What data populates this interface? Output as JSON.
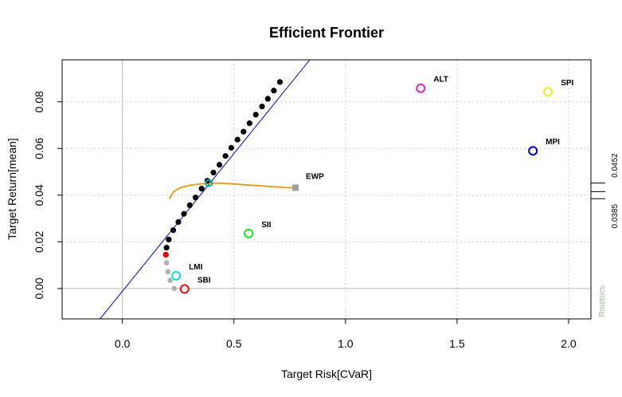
{
  "chart_data": {
    "type": "scatter",
    "title": "Efficient Frontier",
    "xlabel": "Target Risk[CVaR]",
    "ylabel": "Target Return[mean]",
    "xlim": [
      -0.27,
      2.1
    ],
    "ylim": [
      -0.013,
      0.098
    ],
    "x_ticks": [
      0.0,
      0.5,
      1.0,
      1.5,
      2.0
    ],
    "x_tick_labels": [
      "0.0",
      "0.5",
      "1.0",
      "1.5",
      "2.0"
    ],
    "y_ticks": [
      0.0,
      0.02,
      0.04,
      0.06,
      0.08
    ],
    "y_tick_labels": [
      "0.00",
      "0.02",
      "0.04",
      "0.06",
      "0.08"
    ],
    "grid": true,
    "efficient_frontier": {
      "color": "#000000",
      "points": [
        [
          0.198,
          0.0175
        ],
        [
          0.208,
          0.021
        ],
        [
          0.228,
          0.025
        ],
        [
          0.251,
          0.0285
        ],
        [
          0.276,
          0.032
        ],
        [
          0.302,
          0.0357
        ],
        [
          0.328,
          0.039
        ],
        [
          0.355,
          0.0428
        ],
        [
          0.381,
          0.0462
        ],
        [
          0.408,
          0.0497
        ],
        [
          0.435,
          0.053
        ],
        [
          0.462,
          0.0568
        ],
        [
          0.488,
          0.0603
        ],
        [
          0.516,
          0.0638
        ],
        [
          0.543,
          0.0672
        ],
        [
          0.57,
          0.0708
        ],
        [
          0.598,
          0.0745
        ],
        [
          0.626,
          0.078
        ],
        [
          0.652,
          0.0813
        ],
        [
          0.679,
          0.0848
        ],
        [
          0.706,
          0.0885
        ]
      ]
    },
    "minimum_variance_point": {
      "color": "#e00000",
      "x": 0.195,
      "y": 0.0145
    },
    "inefficient_frontier": {
      "color": "#b0b0b0",
      "points": [
        [
          0.198,
          0.011
        ],
        [
          0.204,
          0.0072
        ],
        [
          0.214,
          0.0035
        ],
        [
          0.232,
          0.0
        ]
      ]
    },
    "tangency_line": {
      "color": "#0000cc",
      "points": [
        [
          -0.1,
          -0.013
        ],
        [
          0.84,
          0.098
        ]
      ]
    },
    "tangency_point": {
      "color": "#00aaaa",
      "x": 0.388,
      "y": 0.0452
    },
    "equal_weights_curve": {
      "color": "#e8a020",
      "points": [
        [
          0.21,
          0.0385
        ],
        [
          0.23,
          0.0415
        ],
        [
          0.26,
          0.0432
        ],
        [
          0.3,
          0.0442
        ],
        [
          0.35,
          0.0448
        ],
        [
          0.4,
          0.0452
        ],
        [
          0.45,
          0.0451
        ],
        [
          0.5,
          0.0448
        ],
        [
          0.55,
          0.0444
        ],
        [
          0.6,
          0.0441
        ],
        [
          0.65,
          0.0438
        ],
        [
          0.7,
          0.0435
        ],
        [
          0.73,
          0.0433
        ],
        [
          0.77,
          0.0432
        ]
      ]
    },
    "assets": [
      {
        "name": "SBI",
        "x": 0.279,
        "y": -0.0002,
        "color": "#dd1111"
      },
      {
        "name": "SPI",
        "x": 1.908,
        "y": 0.0843,
        "color": "#eeee22"
      },
      {
        "name": "SII",
        "x": 0.566,
        "y": 0.0236,
        "color": "#22dd22"
      },
      {
        "name": "LMI",
        "x": 0.241,
        "y": 0.0055,
        "color": "#11dddd"
      },
      {
        "name": "MPI",
        "x": 1.84,
        "y": 0.059,
        "color": "#0000cc"
      },
      {
        "name": "ALT",
        "x": 1.337,
        "y": 0.0858,
        "color": "#dd22dd"
      }
    ],
    "equal_weights_portfolio": {
      "name": "EWP",
      "x": 0.776,
      "y": 0.0432,
      "color": "#a0a0a0"
    },
    "right_axis": {
      "ticks": [
        0.0385,
        0.0415,
        0.0452
      ],
      "labels": [
        "0.0385",
        "0.0452"
      ]
    },
    "watermark": "Rmetrics"
  }
}
